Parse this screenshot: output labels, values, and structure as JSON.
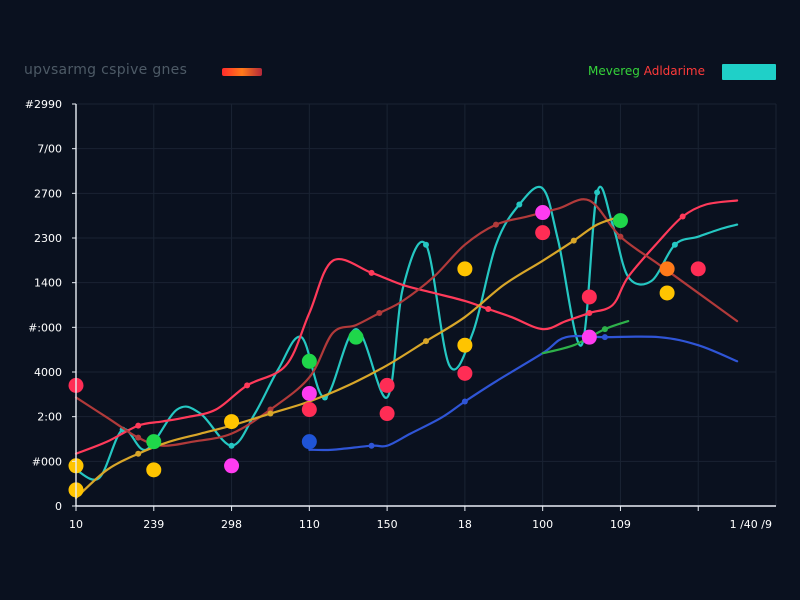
{
  "chart_data": {
    "type": "line",
    "title": "upvsarmg cspive gnes",
    "legend": {
      "label_1": "Mevereg",
      "label_2": "Adldarime",
      "placement": "top-right"
    },
    "y_tick_labels": [
      "0",
      "#000",
      "2:00",
      "4000",
      "#:000",
      "1400",
      "2300",
      "2700",
      "7/00",
      "#2990"
    ],
    "x_tick_labels": [
      "10",
      "239",
      "298",
      "110",
      "150",
      "18",
      "100",
      "109",
      "1 /40 /9"
    ],
    "ylim": [
      0,
      100
    ],
    "grid": true,
    "series": [
      {
        "color": "#25c7c2",
        "x": [
          0.0,
          0.3,
          0.6,
          0.9,
          1.3,
          1.6,
          2.0,
          2.3,
          2.6,
          2.9,
          3.2,
          3.6,
          4.0,
          4.2,
          4.5,
          4.8,
          5.1,
          5.4,
          5.7,
          6.0,
          6.2,
          6.5,
          6.7,
          6.9,
          7.1,
          7.4,
          7.7,
          8.0,
          8.3,
          8.5
        ],
        "values": [
          9,
          7,
          19,
          14,
          24,
          23,
          15,
          23,
          34,
          42,
          27,
          44,
          27,
          54,
          65,
          35,
          43,
          65,
          75,
          79,
          66,
          40,
          78,
          70,
          57,
          56,
          65,
          67,
          69,
          70
        ]
      },
      {
        "color": "#ff3a5a",
        "x": [
          0.0,
          0.4,
          0.8,
          1.1,
          1.4,
          1.8,
          2.2,
          2.7,
          3.0,
          3.3,
          3.8,
          4.2,
          4.6,
          5.0,
          5.3,
          5.6,
          6.0,
          6.3,
          6.6,
          6.9,
          7.1,
          7.5,
          7.8,
          8.1,
          8.5
        ],
        "values": [
          13,
          16,
          20,
          21,
          22,
          24,
          30,
          35,
          48,
          61,
          58,
          55,
          53,
          51,
          49,
          47,
          44,
          46,
          48,
          50,
          57,
          66,
          72,
          75,
          76
        ]
      },
      {
        "color": "#b13a3a",
        "x": [
          0.0,
          0.4,
          0.8,
          1.1,
          1.5,
          2.0,
          2.5,
          3.0,
          3.3,
          3.6,
          3.9,
          4.2,
          4.6,
          5.0,
          5.4,
          5.8,
          6.2,
          6.6,
          7.0,
          7.5,
          8.0,
          8.5
        ],
        "values": [
          27,
          22,
          17,
          15,
          16,
          18,
          24,
          32,
          43,
          45,
          48,
          51,
          57,
          65,
          70,
          72,
          74,
          76,
          67,
          60,
          53,
          46
        ]
      },
      {
        "color": "#d8a629",
        "x": [
          0.0,
          0.4,
          0.8,
          1.2,
          1.6,
          2.0,
          2.5,
          3.0,
          3.5,
          4.0,
          4.5,
          5.0,
          5.5,
          6.0,
          6.4,
          6.7,
          7.0
        ],
        "values": [
          2,
          9,
          13,
          16,
          18,
          20,
          23,
          26,
          30,
          35,
          41,
          47,
          55,
          61,
          66,
          70,
          72
        ]
      },
      {
        "color": "#2f55d6",
        "x": [
          3.0,
          3.3,
          3.8,
          4.0,
          4.3,
          4.7,
          5.0,
          5.4,
          6.0,
          6.3,
          6.8,
          7.5,
          8.0,
          8.5
        ],
        "values": [
          14,
          14,
          15,
          15,
          18,
          22,
          26,
          31,
          38,
          42,
          42,
          42,
          40,
          36
        ]
      },
      {
        "color": "#2eb14a",
        "x": [
          6.0,
          6.4,
          6.8,
          7.1
        ],
        "values": [
          38,
          40,
          44,
          46
        ]
      }
    ],
    "markers": [
      {
        "x": 0.0,
        "y": 30,
        "color": "#ff2d55"
      },
      {
        "x": 0.0,
        "y": 10,
        "color": "#ffc400"
      },
      {
        "x": 0.0,
        "y": 4,
        "color": "#ffc400"
      },
      {
        "x": 1.0,
        "y": 16,
        "color": "#1fd64a"
      },
      {
        "x": 1.0,
        "y": 9,
        "color": "#ffc400"
      },
      {
        "x": 2.0,
        "y": 21,
        "color": "#ffc400"
      },
      {
        "x": 2.0,
        "y": 10,
        "color": "#ff3cf0"
      },
      {
        "x": 3.0,
        "y": 36,
        "color": "#1fd64a"
      },
      {
        "x": 3.0,
        "y": 28,
        "color": "#ff3cf0"
      },
      {
        "x": 3.0,
        "y": 24,
        "color": "#ff2d55"
      },
      {
        "x": 3.0,
        "y": 16,
        "color": "#1f54d6"
      },
      {
        "x": 3.6,
        "y": 42,
        "color": "#1fd64a"
      },
      {
        "x": 4.0,
        "y": 30,
        "color": "#ff2d55"
      },
      {
        "x": 4.0,
        "y": 23,
        "color": "#ff2d55"
      },
      {
        "x": 5.0,
        "y": 59,
        "color": "#ffc400"
      },
      {
        "x": 5.0,
        "y": 40,
        "color": "#ffc400"
      },
      {
        "x": 5.0,
        "y": 33,
        "color": "#ff2d55"
      },
      {
        "x": 6.0,
        "y": 73,
        "color": "#ff3cf0"
      },
      {
        "x": 6.0,
        "y": 68,
        "color": "#ff2d55"
      },
      {
        "x": 6.6,
        "y": 52,
        "color": "#ff2d55"
      },
      {
        "x": 6.6,
        "y": 42,
        "color": "#ff3cf0"
      },
      {
        "x": 7.0,
        "y": 71,
        "color": "#1fd64a"
      },
      {
        "x": 7.6,
        "y": 59,
        "color": "#ff7a1a"
      },
      {
        "x": 7.6,
        "y": 53,
        "color": "#ffc400"
      },
      {
        "x": 8.0,
        "y": 59,
        "color": "#ff2d55"
      }
    ],
    "colors": {
      "background": "#0a111f",
      "axis": "#e9eef5",
      "grid": "#1a2333",
      "tick_text": "#ffffff",
      "title_swatch": "#ff4545",
      "legend_swatch": "#1fd0c8"
    }
  }
}
